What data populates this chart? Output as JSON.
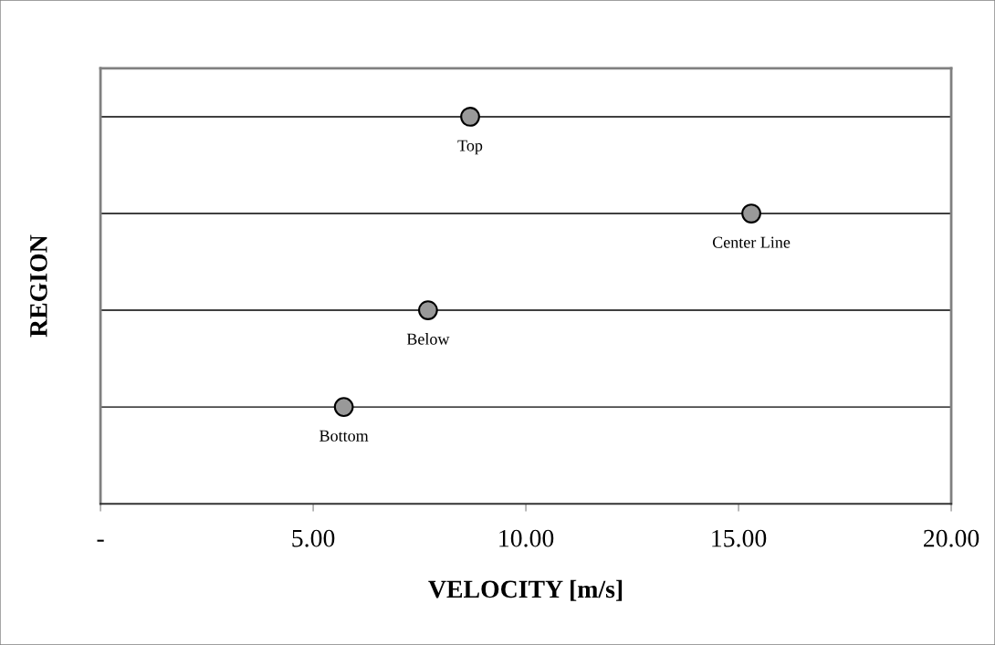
{
  "chart_data": {
    "type": "scatter",
    "orientation": "horizontal",
    "xlabel": "VELOCITY [m/s]",
    "ylabel": "REGION",
    "categories": [
      "Top",
      "Center Line",
      "Below",
      "Bottom"
    ],
    "values": [
      8.69,
      15.3,
      7.7,
      5.72
    ],
    "color": "#999999",
    "marker": "circle",
    "xlim": [
      0,
      20
    ],
    "xticks": [
      {
        "value": 0,
        "label": "-"
      },
      {
        "value": 5,
        "label": "5.00"
      },
      {
        "value": 10,
        "label": "10.00"
      },
      {
        "value": 15,
        "label": "15.00"
      },
      {
        "value": 20,
        "label": "20.00"
      }
    ],
    "grid": "y",
    "tick_labels": "x"
  }
}
